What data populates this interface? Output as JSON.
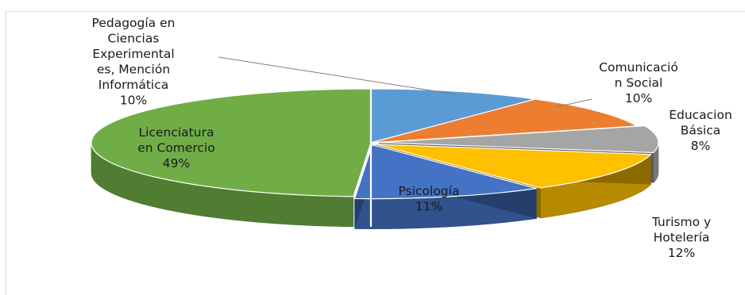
{
  "chart_data": {
    "type": "pie",
    "style": "3d-exploded",
    "categories": [
      "Pedagogía en Ciencias Experimentales, Mención Informática",
      "Comunicación Social",
      "Educacion Básica",
      "Turismo y Hotelería",
      "Psicología",
      "Licenciatura en Comercio"
    ],
    "values": [
      10,
      10,
      8,
      12,
      11,
      49
    ],
    "colors": [
      "#5b9bd5",
      "#ed7d31",
      "#a5a5a5",
      "#ffc000",
      "#4472c4",
      "#70ad47"
    ],
    "labels": [
      {
        "lines": [
          "Pedagogía en",
          "Ciencias",
          "Experimental",
          "es, Mención",
          "Informática"
        ],
        "pct": "10%"
      },
      {
        "lines": [
          "Comunicació",
          "n Social"
        ],
        "pct": "10%"
      },
      {
        "lines": [
          "Educacion",
          "Básica"
        ],
        "pct": "8%"
      },
      {
        "lines": [
          "Turismo y",
          "Hotelería"
        ],
        "pct": "12%"
      },
      {
        "lines": [
          "Psicología"
        ],
        "pct": "11%"
      },
      {
        "lines": [
          "Licenciatura",
          "en Comercio"
        ],
        "pct": "49%"
      }
    ]
  }
}
